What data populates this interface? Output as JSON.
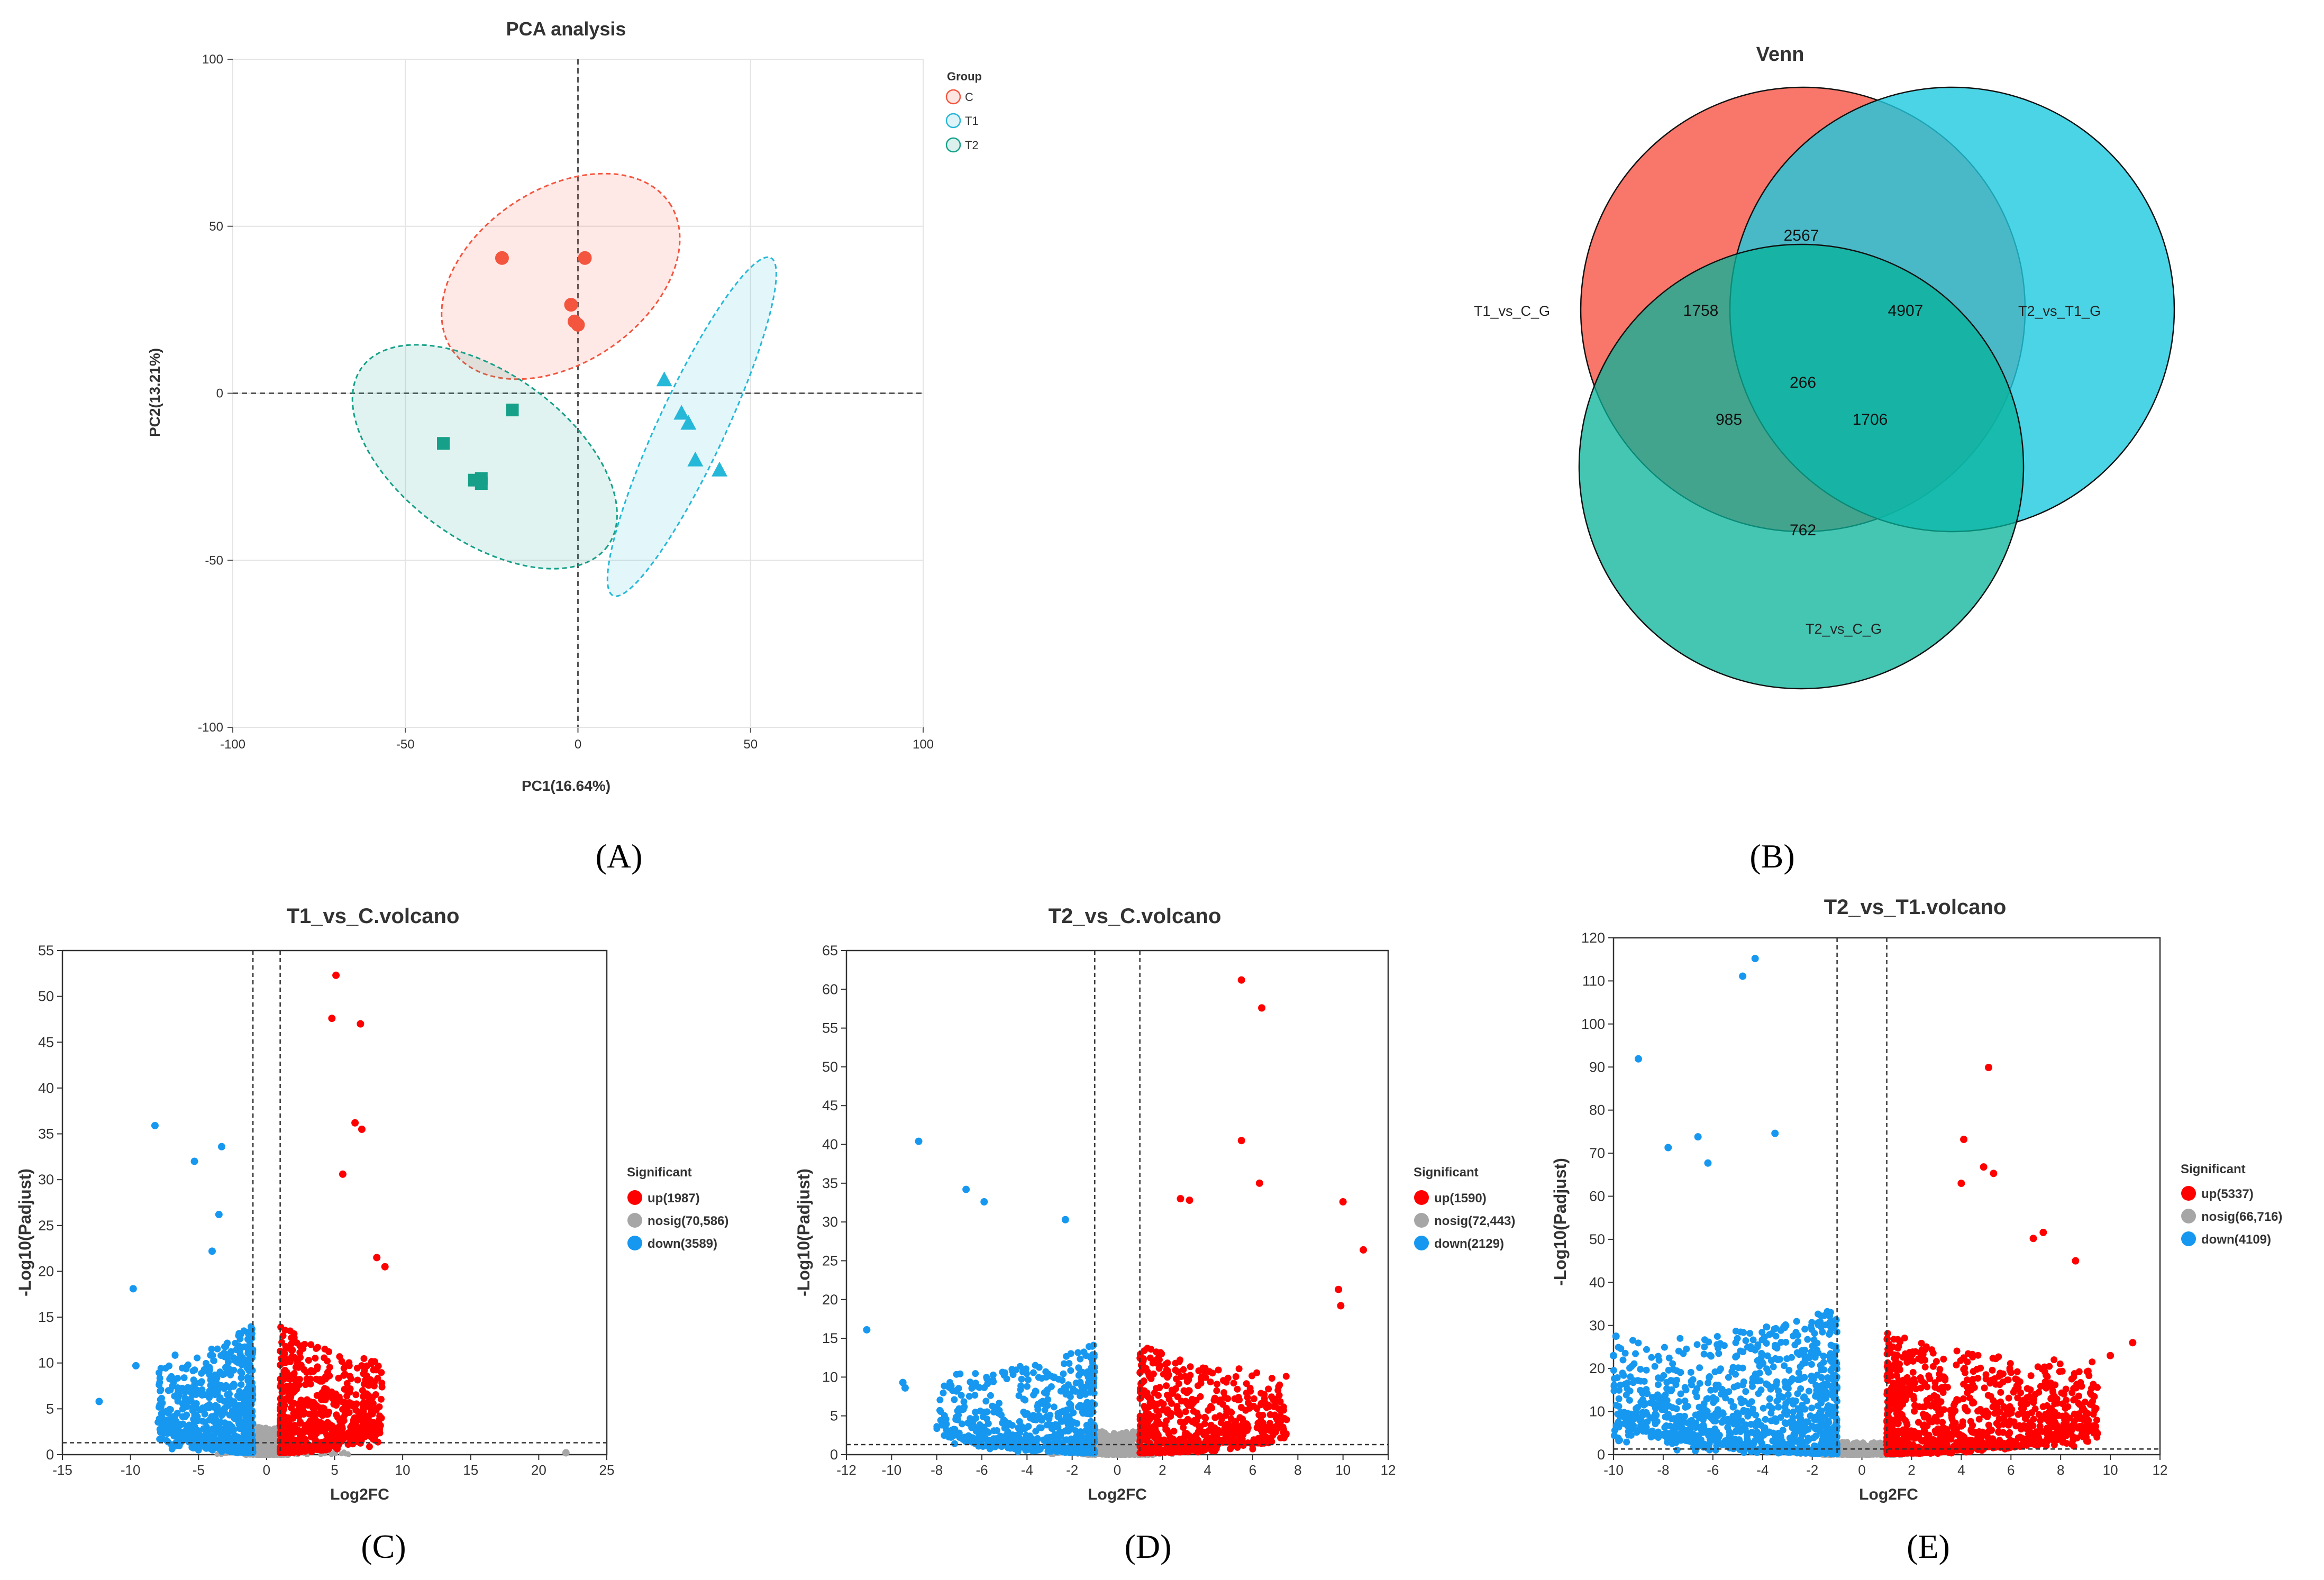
{
  "colors": {
    "pca_c": "#f4553f",
    "pca_t1": "#25b8d8",
    "pca_t2": "#16a089",
    "venn_left": "#f76455",
    "venn_right": "#1ec9df",
    "venn_bottom": "#07b39a",
    "up": "#ff0000",
    "nosig": "#a6a6a6",
    "down": "#1798f0"
  },
  "panel_labels": [
    "(A)",
    "(B)",
    "(C)",
    "(D)",
    "(E)"
  ],
  "chart_data": [
    {
      "type": "scatter",
      "id": "pca",
      "title": "PCA analysis",
      "xlabel": "PC1(16.64%)",
      "ylabel": "PC2(13.21%)",
      "xlim": [
        -100,
        100
      ],
      "ylim": [
        -100,
        100
      ],
      "xticks": [
        -100,
        -50,
        0,
        50,
        100
      ],
      "yticks": [
        -100,
        -50,
        0,
        50,
        100
      ],
      "grid": true,
      "legend_title": "Group",
      "legend_position": "top-right",
      "series": [
        {
          "name": "C",
          "marker": "circle",
          "points": [
            [
              -22,
              40.5
            ],
            [
              2,
              40.5
            ],
            [
              -2,
              26.5
            ],
            [
              -1,
              21.5
            ],
            [
              0,
              20.5
            ]
          ],
          "ellipse": {
            "cx": -5,
            "cy": 35,
            "rx": 38,
            "ry": 26,
            "angle_deg": -34
          }
        },
        {
          "name": "T1",
          "marker": "triangle",
          "points": [
            [
              25,
              4
            ],
            [
              30,
              -6
            ],
            [
              32,
              -9
            ],
            [
              34,
              -20
            ],
            [
              41,
              -23
            ]
          ],
          "ellipse": {
            "cx": 33,
            "cy": -10,
            "rx": 54,
            "ry": 10,
            "angle_deg": -65
          }
        },
        {
          "name": "T2",
          "marker": "square",
          "points": [
            [
              -19,
              -5
            ],
            [
              -39,
              -15
            ],
            [
              -30,
              -26
            ],
            [
              -28,
              -25.5
            ],
            [
              -28,
              -27
            ]
          ],
          "ellipse": {
            "cx": -27,
            "cy": -19,
            "rx": 44,
            "ry": 25,
            "angle_deg": 36
          }
        }
      ]
    },
    {
      "type": "venn",
      "id": "venn",
      "title": "Venn",
      "sets": [
        "T1_vs_C_G",
        "T2_vs_T1_G",
        "T2_vs_C_G"
      ],
      "regions": {
        "left_only": 1758,
        "right_only": 4907,
        "bottom_only": 762,
        "left_right": 2567,
        "left_bottom": 985,
        "right_bottom": 1706,
        "all": 266
      }
    },
    {
      "type": "volcano",
      "id": "volcano1",
      "title": "T1_vs_C.volcano",
      "xlabel": "Log2FC",
      "ylabel": "-Log10(Padjust)",
      "xlim": [
        -15,
        25
      ],
      "ylim": [
        0,
        55
      ],
      "xticks": [
        -15,
        -10,
        -5,
        0,
        5,
        10,
        15,
        20,
        25
      ],
      "yticks": [
        0,
        5,
        10,
        15,
        20,
        25,
        30,
        35,
        40,
        45,
        50,
        55
      ],
      "fc_threshold": 1,
      "p_threshold_line": 1.3,
      "legend_title": "Significant",
      "legend": [
        "up(1987)",
        "nosig(70,586)",
        "down(3589)"
      ],
      "notable_points": {
        "up": [
          [
            5.1,
            52.3
          ],
          [
            4.8,
            47.6
          ],
          [
            6.9,
            47.0
          ],
          [
            6.5,
            36.2
          ],
          [
            7.0,
            35.5
          ],
          [
            5.6,
            30.6
          ],
          [
            8.1,
            21.5
          ],
          [
            8.7,
            20.5
          ],
          [
            7.6,
            3.0
          ],
          [
            8.0,
            2.6
          ]
        ],
        "down": [
          [
            -8.2,
            35.9
          ],
          [
            -5.3,
            32.0
          ],
          [
            -3.3,
            33.6
          ],
          [
            -3.5,
            26.2
          ],
          [
            -4.0,
            22.2
          ],
          [
            -9.8,
            18.1
          ],
          [
            -12.3,
            5.8
          ],
          [
            -9.6,
            9.7
          ]
        ],
        "nosig": [
          [
            22.0,
            0.2
          ]
        ]
      },
      "bulk": {
        "up_xmax": 8.5,
        "up_ymax": 14,
        "down_xmin": -8,
        "down_ymax": 14,
        "up_n": 700,
        "down_n": 700,
        "nosig_n": 500
      }
    },
    {
      "type": "volcano",
      "id": "volcano2",
      "title": "T2_vs_C.volcano",
      "xlabel": "Log2FC",
      "ylabel": "-Log10(Padjust)",
      "xlim": [
        -12,
        12
      ],
      "ylim": [
        0,
        65
      ],
      "xticks": [
        -12,
        -10,
        -8,
        -6,
        -4,
        -2,
        0,
        2,
        4,
        6,
        8,
        10,
        12
      ],
      "yticks": [
        0,
        5,
        10,
        15,
        20,
        25,
        30,
        35,
        40,
        45,
        50,
        55,
        60,
        65
      ],
      "fc_threshold": 1,
      "p_threshold_line": 1.3,
      "legend_title": "Significant",
      "legend": [
        "up(1590)",
        "nosig(72,443)",
        "down(2129)"
      ],
      "notable_points": {
        "up": [
          [
            5.5,
            61.2
          ],
          [
            6.4,
            57.6
          ],
          [
            5.5,
            40.5
          ],
          [
            6.3,
            35.0
          ],
          [
            10.0,
            32.6
          ],
          [
            10.9,
            26.4
          ],
          [
            9.8,
            21.3
          ],
          [
            9.9,
            19.2
          ],
          [
            2.8,
            33.0
          ],
          [
            3.2,
            32.8
          ]
        ],
        "down": [
          [
            -8.8,
            40.4
          ],
          [
            -6.7,
            34.2
          ],
          [
            -5.9,
            32.6
          ],
          [
            -2.3,
            30.3
          ],
          [
            -11.1,
            16.1
          ],
          [
            -9.5,
            9.3
          ],
          [
            -9.4,
            8.6
          ]
        ]
      },
      "bulk": {
        "up_xmax": 7.5,
        "up_ymax": 14,
        "down_xmin": -8,
        "down_ymax": 14,
        "up_n": 650,
        "down_n": 600,
        "nosig_n": 500
      }
    },
    {
      "type": "volcano",
      "id": "volcano3",
      "title": "T2_vs_T1.volcano",
      "xlabel": "Log2FC",
      "ylabel": "-Log10(Padjust)",
      "xlim": [
        -10,
        12
      ],
      "ylim": [
        0,
        120
      ],
      "xticks": [
        -10,
        -8,
        -6,
        -4,
        -2,
        0,
        2,
        4,
        6,
        8,
        10,
        12
      ],
      "yticks": [
        0,
        10,
        20,
        30,
        40,
        50,
        60,
        70,
        80,
        90,
        100,
        110,
        120
      ],
      "fc_threshold": 1,
      "p_threshold_line": 1.3,
      "legend_title": "Significant",
      "legend": [
        "up(5337)",
        "nosig(66,716)",
        "down(4109)"
      ],
      "notable_points": {
        "up": [
          [
            5.1,
            89.9
          ],
          [
            4.1,
            73.2
          ],
          [
            4.9,
            66.8
          ],
          [
            5.3,
            65.3
          ],
          [
            4.0,
            63.0
          ],
          [
            6.9,
            50.2
          ],
          [
            7.3,
            51.6
          ],
          [
            8.6,
            45.0
          ],
          [
            10.9,
            26.0
          ],
          [
            10.0,
            23.0
          ]
        ],
        "down": [
          [
            -4.3,
            115.2
          ],
          [
            -4.8,
            111.1
          ],
          [
            -9.0,
            91.9
          ],
          [
            -3.5,
            74.6
          ],
          [
            -6.6,
            73.8
          ],
          [
            -7.8,
            71.3
          ],
          [
            -6.2,
            67.7
          ],
          [
            -9.9,
            27.5
          ],
          [
            -10.0,
            23.0
          ]
        ]
      },
      "bulk": {
        "up_xmax": 9.5,
        "up_ymax": 28,
        "down_xmin": -10,
        "down_ymax": 35,
        "up_n": 1100,
        "down_n": 1100,
        "nosig_n": 500
      }
    }
  ]
}
